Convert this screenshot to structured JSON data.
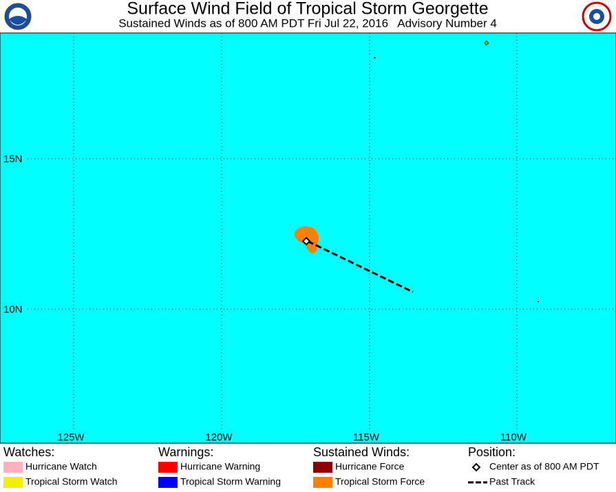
{
  "header": {
    "title": "Surface Wind Field of Tropical Storm Georgette",
    "subtitle": "Sustained Winds as of 800 AM PDT Fri Jul 22, 2016   Advisory Number 4"
  },
  "map": {
    "lat_labels": [
      "15N",
      "10N"
    ],
    "lon_labels": [
      "125W",
      "120W",
      "115W",
      "110W"
    ]
  },
  "legend": [
    {
      "heading": "Watches:",
      "items": [
        {
          "label": "Hurricane Watch",
          "color": "#ffb0c0"
        },
        {
          "label": "Tropical Storm Watch",
          "color": "#f0f000"
        }
      ]
    },
    {
      "heading": "Warnings:",
      "items": [
        {
          "label": "Hurricane Warning",
          "color": "#ff0000"
        },
        {
          "label": "Tropical Storm Warning",
          "color": "#0000ff"
        }
      ]
    },
    {
      "heading": "Sustained Winds:",
      "items": [
        {
          "label": "Hurricane Force",
          "color": "#8b0000"
        },
        {
          "label": "Tropical Storm Force",
          "color": "#ff8000"
        }
      ]
    },
    {
      "heading": "Position:",
      "items": [
        {
          "label": "Center as of 800 AM PDT"
        },
        {
          "label": "Past Track"
        }
      ]
    }
  ]
}
